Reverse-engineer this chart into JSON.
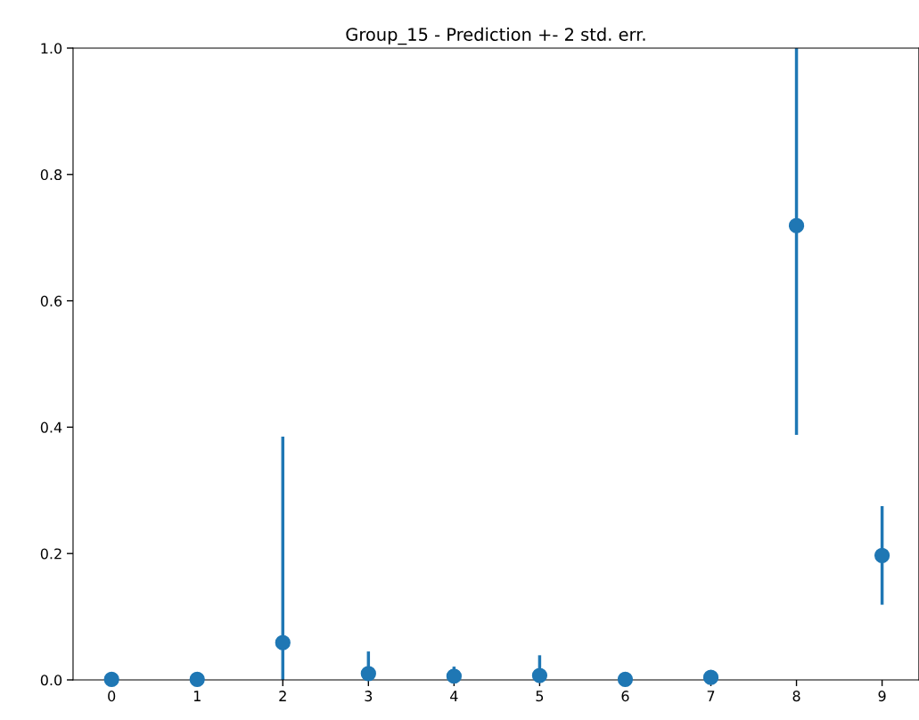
{
  "chart_data": {
    "type": "scatter",
    "title": "Group_15 - Prediction +- 2 std. err.",
    "x": [
      0,
      1,
      2,
      3,
      4,
      5,
      6,
      7,
      8,
      9
    ],
    "series": [
      {
        "color": "#1f77b4",
        "values": [
          0.001,
          0.001,
          0.059,
          0.01,
          0.006,
          0.007,
          0.001,
          0.004,
          0.719,
          0.197
        ],
        "errors": [
          null,
          null,
          [
            0.0,
            0.385
          ],
          0.035,
          0.015,
          0.032,
          null,
          null,
          [
            0.388,
            1.0
          ],
          0.078
        ]
      }
    ],
    "xlim": [
      -0.45,
      9.43
    ],
    "ylim": [
      0,
      1.0
    ],
    "xticks": [
      0,
      1,
      2,
      3,
      4,
      5,
      6,
      7,
      8,
      9
    ],
    "yticks": [
      {
        "value": 0,
        "label": "0.0"
      },
      0.2,
      0.4,
      0.6,
      0.8,
      {
        "value": 1,
        "label": "1.0"
      }
    ],
    "marker": "circle",
    "grid": false,
    "legend": false
  }
}
